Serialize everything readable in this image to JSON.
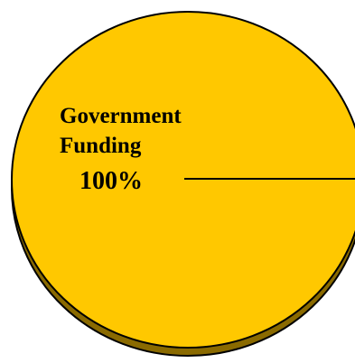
{
  "chart_data": {
    "type": "pie",
    "title": "",
    "slices": [
      {
        "name": "Government Funding",
        "label_lines": [
          "Government",
          "Funding"
        ],
        "value": 100,
        "value_label": "100%",
        "color": "#FFC800"
      }
    ],
    "style": {
      "three_d": true,
      "side_color": "#8A6A00",
      "outline_color": "#000000"
    },
    "legend": "none"
  }
}
